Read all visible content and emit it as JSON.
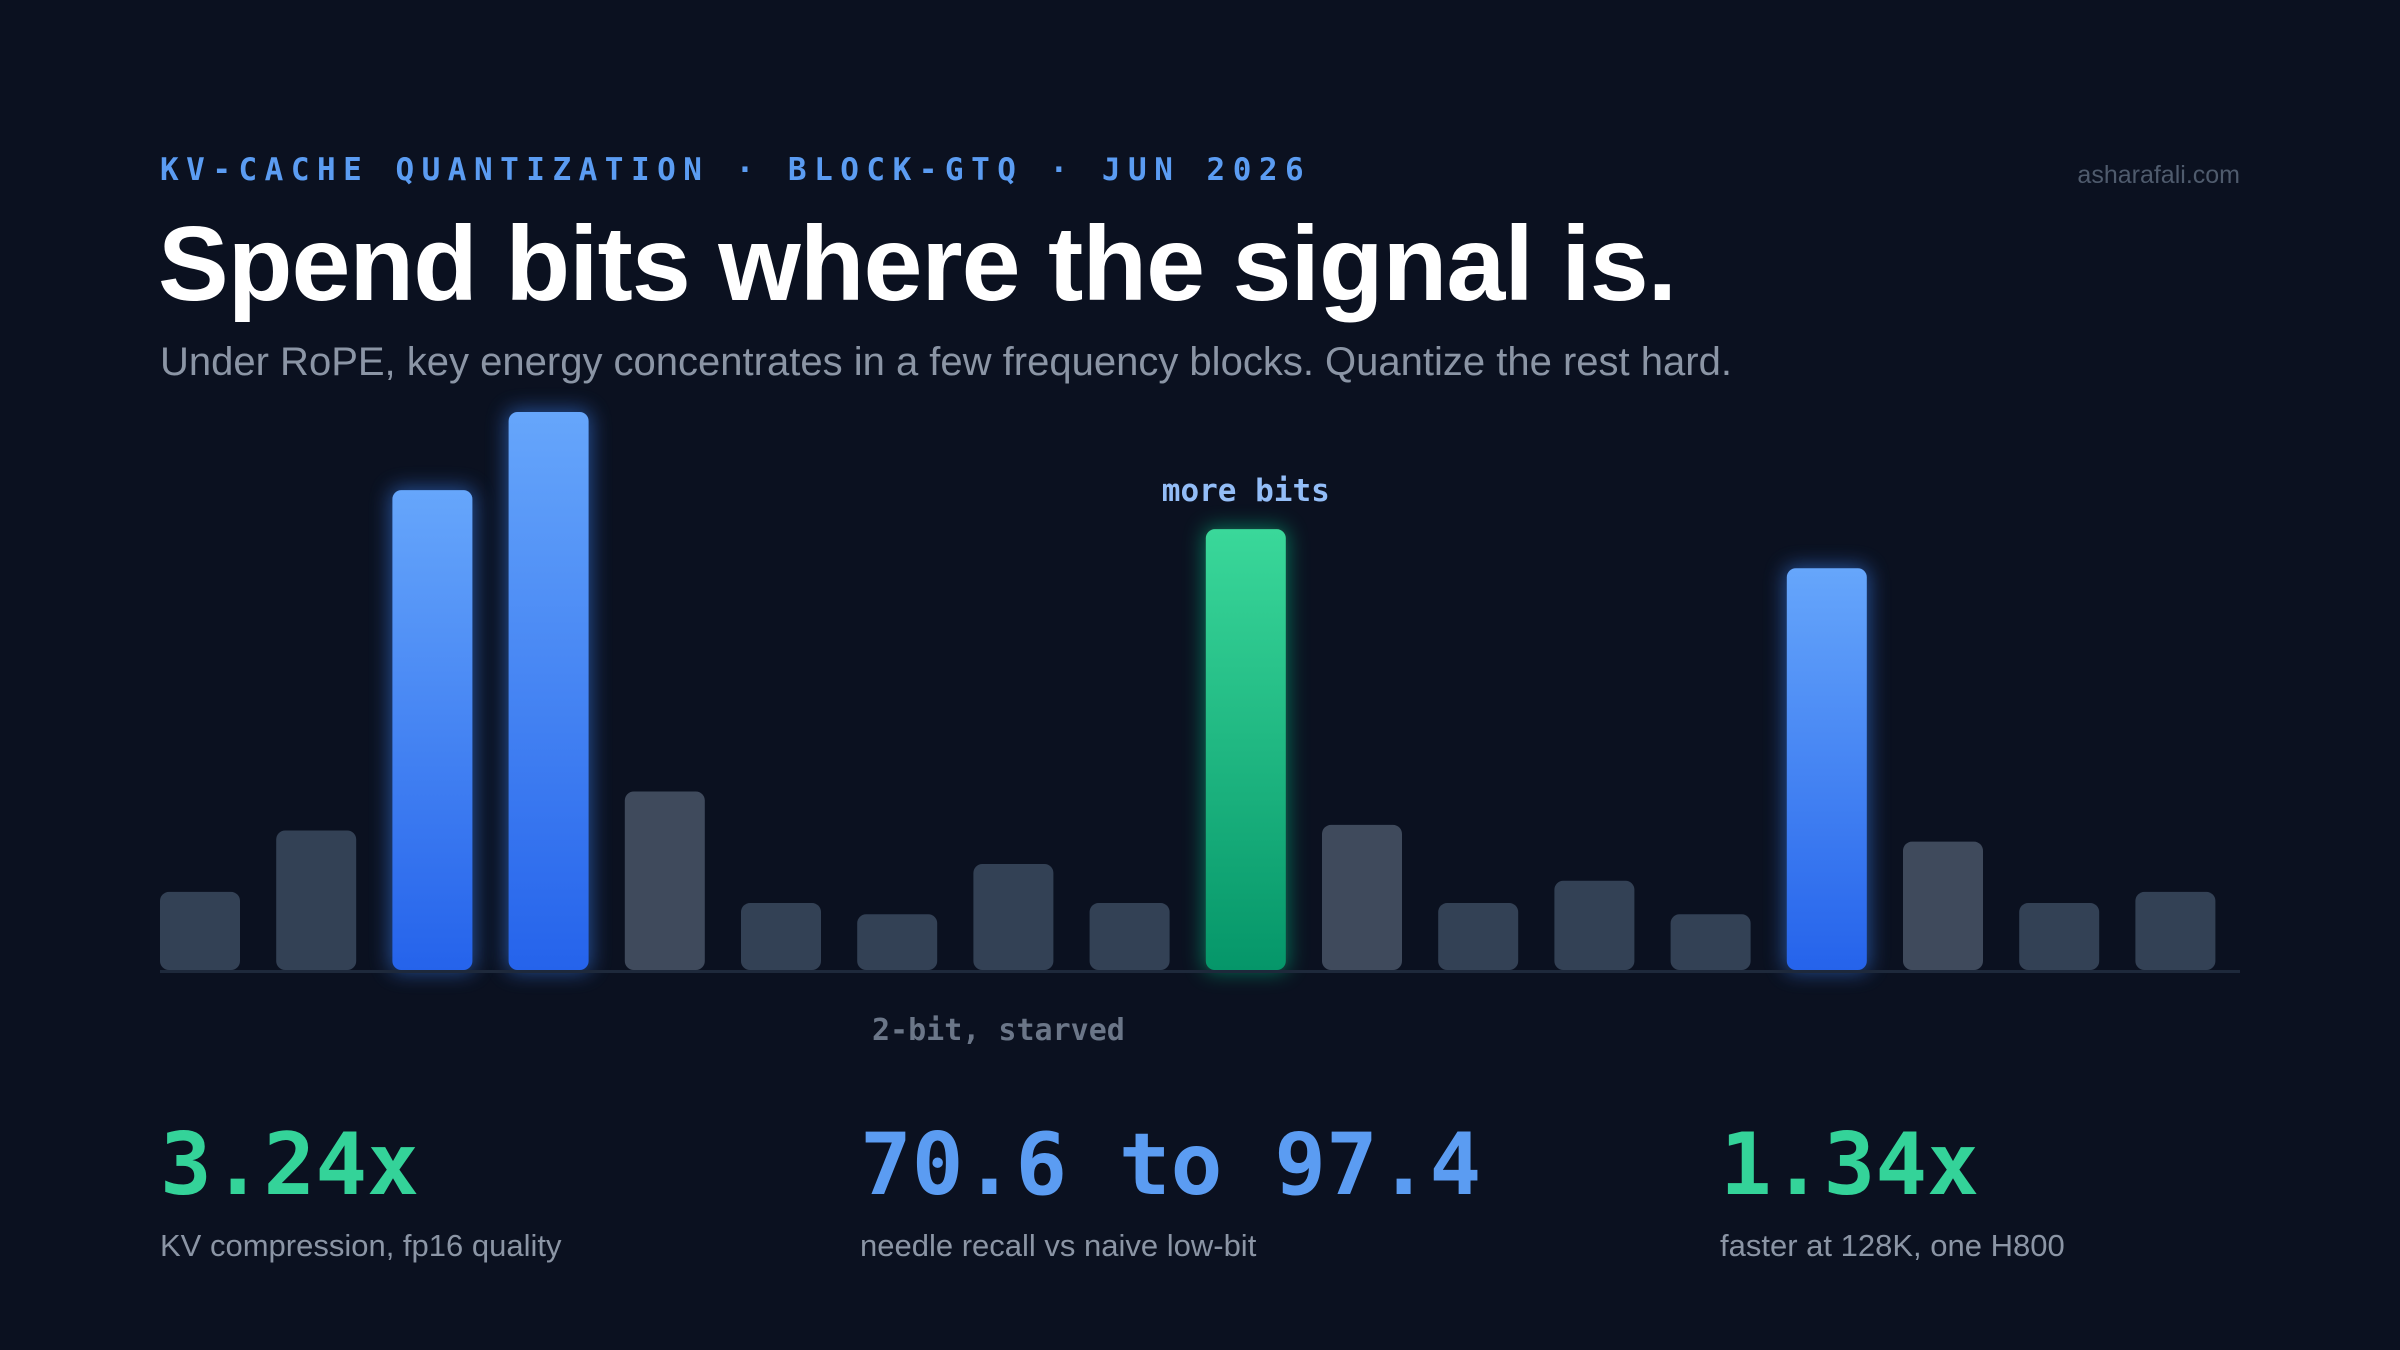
{
  "header": {
    "eyebrow": "KV-CACHE QUANTIZATION · BLOCK-GTQ · JUN 2026",
    "site": "asharafali.com",
    "title": "Spend bits where the signal is.",
    "subtitle": "Under RoPE, key energy concentrates in a few frequency blocks. Quantize the rest hard."
  },
  "colors": {
    "background": "#0b1120",
    "accent_blue": "#5b9cf2",
    "accent_green": "#34d399",
    "bar_dark_a": "#334155",
    "bar_dark_b": "#3f4a5c",
    "muted_text": "#8b95a5"
  },
  "chart_data": {
    "type": "bar",
    "title": "",
    "xlabel": "",
    "ylabel": "",
    "ylim": [
      0,
      100
    ],
    "grid": false,
    "legend": "none",
    "values": [
      14,
      25,
      86,
      100,
      32,
      12,
      10,
      19,
      12,
      79,
      26,
      12,
      16,
      10,
      72,
      23,
      12,
      14
    ],
    "highlight": [
      "none",
      "none",
      "blue",
      "blue",
      "none",
      "none",
      "none",
      "none",
      "none",
      "green",
      "none",
      "none",
      "none",
      "none",
      "blue",
      "none",
      "none",
      "none"
    ],
    "annotations": [
      {
        "text": "more bits",
        "bar_index": 9,
        "placement": "above"
      },
      {
        "text": "2-bit, starved",
        "bar_index": 7,
        "placement": "below"
      }
    ]
  },
  "stats": [
    {
      "value": "3.24x",
      "label": "KV compression, fp16 quality",
      "color": "#34d399"
    },
    {
      "value": "70.6 to 97.4",
      "label": "needle recall vs naive low-bit",
      "color": "#5b9cf2"
    },
    {
      "value": "1.34x",
      "label": "faster at 128K, one H800",
      "color": "#34d399"
    }
  ]
}
